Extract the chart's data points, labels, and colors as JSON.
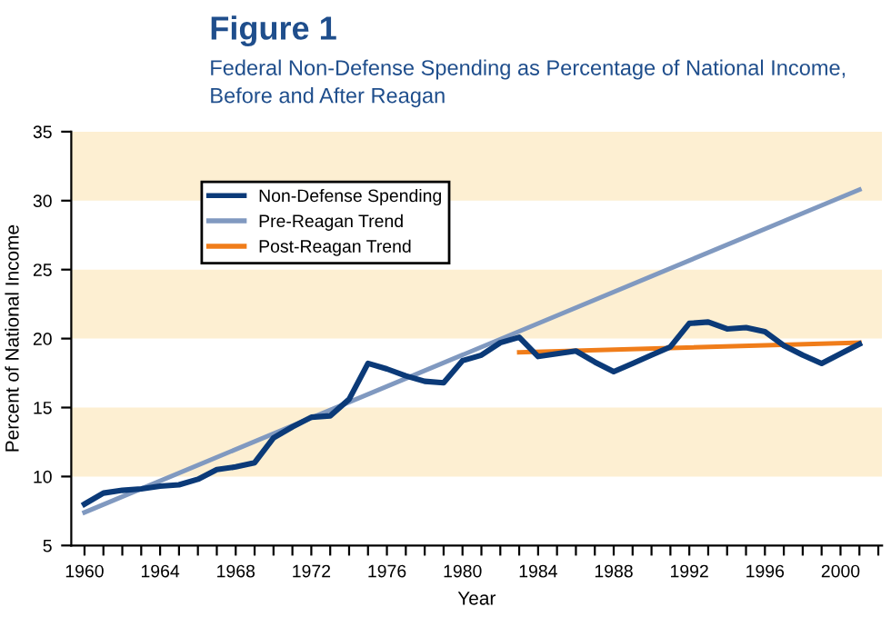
{
  "chart_data": {
    "type": "line",
    "title": "Figure 1",
    "subtitle": "Federal Non-Defense Spending as Percentage of National Income,\nBefore and After Reagan",
    "xlabel": "Year",
    "ylabel": "Percent of National Income",
    "series": [
      {
        "name": "Non-Defense Spending",
        "color": "#0b3a78",
        "x": [
          1960,
          1961,
          1962,
          1963,
          1964,
          1965,
          1966,
          1967,
          1968,
          1969,
          1970,
          1971,
          1972,
          1973,
          1974,
          1975,
          1976,
          1977,
          1978,
          1979,
          1980,
          1981,
          1982,
          1983,
          1984,
          1985,
          1986,
          1987,
          1988,
          1989,
          1990,
          1991,
          1992,
          1993,
          1994,
          1995,
          1996,
          1997,
          1998,
          1999,
          2000,
          2001
        ],
        "values": [
          8.0,
          8.8,
          9.0,
          9.1,
          9.3,
          9.4,
          9.8,
          10.5,
          10.7,
          11.0,
          12.8,
          13.6,
          14.3,
          14.4,
          15.6,
          18.2,
          17.8,
          17.3,
          16.9,
          16.8,
          18.4,
          18.8,
          19.7,
          20.1,
          18.7,
          18.9,
          19.1,
          18.3,
          17.6,
          18.2,
          18.8,
          19.4,
          21.1,
          21.2,
          20.7,
          20.8,
          20.5,
          19.5,
          18.8,
          18.2,
          18.9,
          19.6
        ]
      },
      {
        "name": "Pre-Reagan Trend",
        "color": "#8099c0",
        "x": [
          1960,
          2001
        ],
        "values": [
          7.4,
          30.8
        ]
      },
      {
        "name": "Post-Reagan Trend",
        "color": "#f07d1a",
        "x": [
          1983,
          2001
        ],
        "values": [
          19.0,
          19.7
        ]
      }
    ],
    "xlim": [
      1959.3,
      2002.2
    ],
    "ylim": [
      5,
      35
    ],
    "xticks": [
      1960,
      {
        "value": 1961,
        "label": null
      },
      {
        "value": 1962,
        "label": null
      },
      {
        "value": 1963,
        "label": null
      },
      1964,
      {
        "value": 1965,
        "label": null
      },
      {
        "value": 1966,
        "label": null
      },
      {
        "value": 1967,
        "label": null
      },
      1968,
      {
        "value": 1969,
        "label": null
      },
      {
        "value": 1970,
        "label": null
      },
      {
        "value": 1971,
        "label": null
      },
      1972,
      {
        "value": 1973,
        "label": null
      },
      {
        "value": 1974,
        "label": null
      },
      {
        "value": 1975,
        "label": null
      },
      1976,
      {
        "value": 1977,
        "label": null
      },
      {
        "value": 1978,
        "label": null
      },
      {
        "value": 1979,
        "label": null
      },
      1980,
      {
        "value": 1981,
        "label": null
      },
      {
        "value": 1982,
        "label": null
      },
      {
        "value": 1983,
        "label": null
      },
      1984,
      {
        "value": 1985,
        "label": null
      },
      {
        "value": 1986,
        "label": null
      },
      {
        "value": 1987,
        "label": null
      },
      1988,
      {
        "value": 1989,
        "label": null
      },
      {
        "value": 1990,
        "label": null
      },
      {
        "value": 1991,
        "label": null
      },
      1992,
      {
        "value": 1993,
        "label": null
      },
      {
        "value": 1994,
        "label": null
      },
      {
        "value": 1995,
        "label": null
      },
      1996,
      {
        "value": 1997,
        "label": null
      },
      {
        "value": 1998,
        "label": null
      },
      {
        "value": 1999,
        "label": null
      },
      2000,
      {
        "value": 2001,
        "label": null
      },
      {
        "value": 2002,
        "label": null
      }
    ],
    "yticks": [
      5,
      10,
      15,
      20,
      25,
      30,
      35
    ],
    "bands": [
      {
        "axis": "y",
        "from": 10,
        "to": 15,
        "color": "#fdefd2"
      },
      {
        "axis": "y",
        "from": 20,
        "to": 25,
        "color": "#fdefd2"
      },
      {
        "axis": "y",
        "from": 30,
        "to": 35,
        "color": "#fdefd2"
      }
    ],
    "legend": "top left",
    "grid": false,
    "marker": "none",
    "line_style": "solid"
  }
}
